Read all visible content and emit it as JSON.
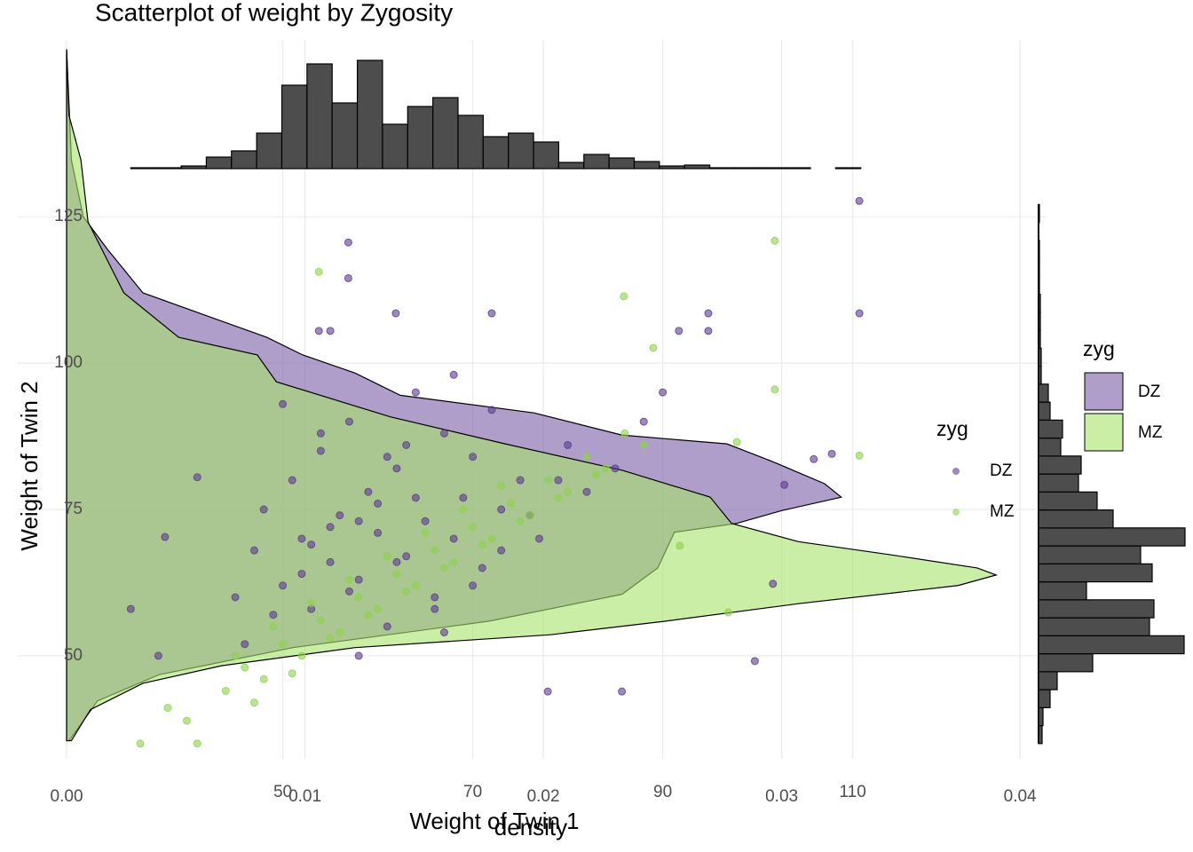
{
  "chart_data": [
    {
      "type": "scatter",
      "title": "Scatterplot of weight by Zygosity",
      "xlabel": "Weight of Twin 1",
      "ylabel": "Weight of Twin 2",
      "legend_title": "zyg",
      "xlim": [
        22.1,
        130.5
      ],
      "ylim": [
        32.4,
        155.2
      ],
      "xticks": [
        50,
        70,
        90,
        110
      ],
      "yticks": [
        50,
        75,
        100,
        125
      ],
      "grid": true,
      "series": [
        {
          "name": "DZ",
          "color": "#5b3a8c",
          "x": [
            110.7,
            110.7,
            56.9,
            56.9,
            37.6,
            34.0,
            36.9,
            41.0,
            99.7,
            77.9,
            85.7,
            107.8,
            105.9,
            102.8,
            101.6,
            94.8,
            94.8,
            91.7,
            72.0,
            61.9,
            53.8,
            55.0,
            45,
            47,
            48,
            50,
            51,
            52,
            53,
            54,
            55,
            56,
            57,
            58,
            59,
            60,
            61,
            62,
            63,
            64,
            65,
            66,
            67,
            68,
            69,
            70,
            71,
            72,
            73,
            75,
            77,
            80,
            82,
            85,
            88,
            90,
            46,
            49,
            52,
            55,
            58,
            60,
            63,
            66,
            68,
            70,
            73,
            76,
            79,
            50,
            53,
            57,
            61,
            64,
            67,
            54,
            58,
            62
          ],
          "values": [
            127.7,
            108.5,
            120.6,
            114.5,
            70.3,
            58.0,
            50.0,
            80.5,
            49.1,
            43.9,
            43.9,
            84.5,
            83.6,
            79.2,
            62.3,
            108.5,
            105.5,
            105.5,
            108.5,
            108.5,
            105.5,
            105.5,
            60,
            68,
            75,
            62,
            80,
            70,
            58,
            85,
            66,
            74,
            90,
            63,
            78,
            71,
            55,
            82,
            67,
            95,
            73,
            60,
            88,
            70,
            77,
            84,
            65,
            92,
            75,
            80,
            70,
            86,
            78,
            82,
            90,
            95,
            52,
            57,
            64,
            72,
            50,
            76,
            86,
            58,
            98,
            62,
            68,
            74,
            80,
            93,
            69,
            61,
            84,
            77,
            54,
            88,
            73,
            66
          ]
        },
        {
          "name": "MZ",
          "color": "#8fd14f",
          "x": [
            101.8,
            110.7,
            101.8,
            85.9,
            53.8,
            35,
            41,
            37.9,
            39.9,
            96.9,
            91.8,
            97.8,
            89,
            44,
            46,
            48,
            50,
            52,
            54,
            56,
            58,
            60,
            62,
            64,
            66,
            68,
            70,
            72,
            74,
            76,
            78,
            80,
            82,
            84,
            86,
            88,
            47,
            51,
            55,
            59,
            63,
            67,
            71,
            75,
            79,
            83,
            45,
            49,
            53,
            57,
            61,
            65,
            69,
            73
          ],
          "values": [
            120.9,
            84.2,
            95.5,
            111.4,
            115.6,
            35,
            35,
            41.1,
            38.9,
            57.4,
            68.8,
            86.5,
            102.6,
            44,
            48,
            46,
            52,
            50,
            56,
            54,
            60,
            58,
            64,
            62,
            68,
            66,
            72,
            70,
            76,
            74,
            80,
            78,
            84,
            82,
            88,
            86,
            42,
            47,
            53,
            57,
            61,
            65,
            69,
            73,
            77,
            81,
            50,
            55,
            59,
            63,
            67,
            71,
            75,
            79
          ]
        }
      ]
    },
    {
      "type": "density",
      "xlabel": "density",
      "legend_title": "zyg",
      "xlim": [
        -0.00205,
        0.04115
      ],
      "ylim": [
        32.4,
        155.2
      ],
      "xticks": [
        {
          "value": 0,
          "label": "0.00"
        },
        0.01,
        0.02,
        0.03,
        0.04
      ],
      "grid": true,
      "series": [
        {
          "name": "DZ",
          "color": "#7b5ea7",
          "x": [
            153.6,
            134.7,
            125,
            119.5,
            112,
            108.2,
            104.4,
            101.4,
            98.3,
            94.5,
            91.5,
            87.7,
            86.2,
            83.2,
            79.4,
            77.1,
            74.8,
            72.6,
            71.1,
            65,
            60.5,
            55.9,
            51.4,
            46.8,
            42.3,
            35.5
          ],
          "values": [
            0,
            0.0002,
            0.0007,
            0.0017,
            0.0032,
            0.0058,
            0.0084,
            0.0099,
            0.0121,
            0.014,
            0.0196,
            0.0233,
            0.0277,
            0.0296,
            0.0318,
            0.0325,
            0.03,
            0.0281,
            0.0255,
            0.0248,
            0.0233,
            0.0177,
            0.0095,
            0.0039,
            0.0013,
            0.0001
          ]
        },
        {
          "name": "MZ",
          "color": "#a6e26a",
          "x": [
            153.6,
            142.3,
            134.7,
            124.1,
            112,
            104.4,
            101.4,
            96.8,
            90.8,
            86.2,
            81.7,
            77.1,
            72.6,
            69.5,
            67.3,
            65,
            63.8,
            62,
            58.9,
            55.9,
            53.6,
            51.4,
            48.3,
            45.3,
            40.8,
            35.5
          ],
          "values": [
            0,
            0.0001,
            0.0006,
            0.0009,
            0.0024,
            0.0047,
            0.008,
            0.0088,
            0.0136,
            0.0184,
            0.0233,
            0.027,
            0.0279,
            0.0307,
            0.0345,
            0.0382,
            0.039,
            0.0374,
            0.0307,
            0.0251,
            0.0203,
            0.0121,
            0.0065,
            0.0032,
            0.001,
            0.0002
          ]
        }
      ]
    },
    {
      "type": "histogram",
      "orientation": "vertical",
      "color": "#4d4d4d",
      "xlim": [
        22.1,
        130.5
      ],
      "ylim": [
        0,
        130
      ],
      "bins": [
        34,
        36.65,
        39.3,
        41.95,
        44.6,
        47.25,
        49.9,
        52.55,
        55.2,
        57.85,
        60.5,
        63.15,
        65.8,
        68.45,
        71.1,
        73.75,
        76.4,
        79.05,
        81.7,
        84.35,
        87,
        89.65,
        92.3,
        94.95,
        97.6,
        100.25,
        102.9,
        105.55,
        108.2,
        110.85
      ],
      "values": [
        1,
        1,
        3,
        13,
        20,
        40,
        94,
        118,
        74,
        122,
        50,
        70,
        80,
        60,
        36,
        40,
        30,
        7,
        16,
        12,
        8,
        3,
        4,
        1,
        1,
        1,
        1,
        0,
        1
      ]
    },
    {
      "type": "histogram",
      "orientation": "horizontal",
      "color": "#4d4d4d",
      "xlim": [
        0,
        170
      ],
      "ylim": [
        32.4,
        155.2
      ],
      "bins": [
        35,
        38.07,
        41.14,
        44.21,
        47.28,
        50.35,
        53.42,
        56.49,
        59.56,
        62.63,
        65.7,
        68.77,
        71.84,
        74.91,
        77.98,
        81.05,
        84.12,
        87.19,
        90.26,
        93.33,
        96.4,
        99.47,
        102.54,
        105.61,
        108.68,
        111.75,
        114.82,
        117.89,
        120.96,
        124.03,
        127.1
      ],
      "values": [
        4,
        5,
        13,
        21,
        61,
        164,
        125,
        130,
        54,
        128,
        115,
        165,
        84,
        66,
        45,
        48,
        25,
        27,
        13,
        11,
        3,
        3,
        2,
        2,
        2,
        1,
        1,
        1,
        0,
        1
      ]
    }
  ]
}
